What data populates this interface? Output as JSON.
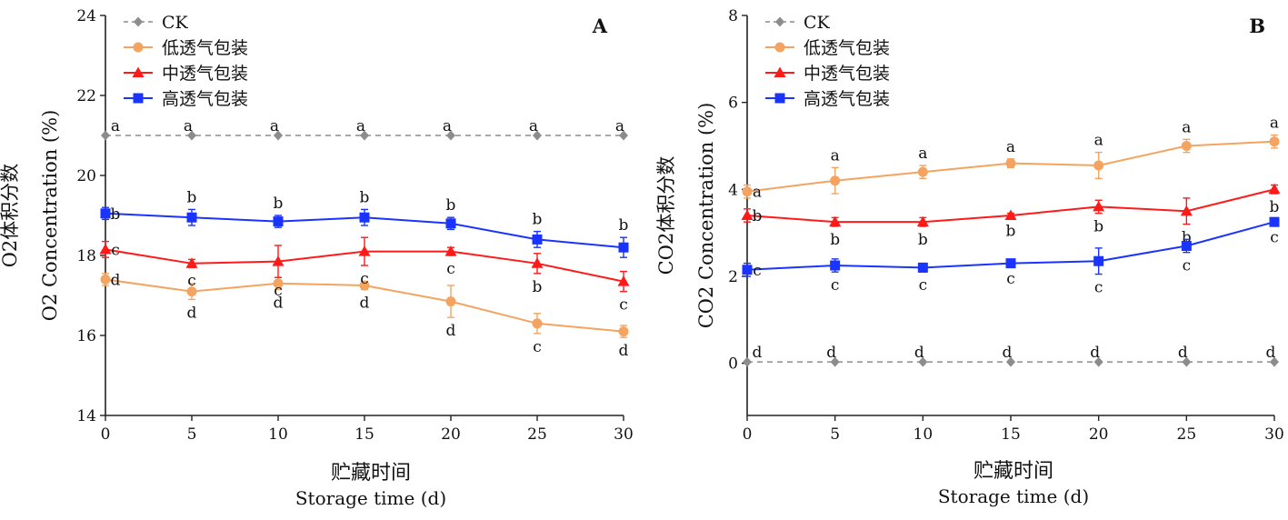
{
  "chart_data": [
    {
      "type": "line",
      "panel_label": "A",
      "ylabel_cn": "O2体积分数",
      "ylabel_en": "O2 Concentration (%)",
      "xlabel_cn": "贮藏时间",
      "xlabel_en": "Storage time (d)",
      "x": [
        0,
        5,
        10,
        15,
        20,
        25,
        30
      ],
      "xlim": [
        0,
        30
      ],
      "ylim": [
        14,
        24
      ],
      "yticks": [
        14,
        16,
        18,
        20,
        22,
        24
      ],
      "legend_position": "top-left",
      "grid": false,
      "series": [
        {
          "name": "CK",
          "color": "#8c8c8c",
          "marker": "diamond",
          "dashed": true,
          "values": [
            21,
            21,
            21,
            21,
            21,
            21,
            21
          ],
          "errors": [
            0,
            0,
            0,
            0,
            0,
            0,
            0
          ],
          "letters": [
            "a",
            "a",
            "a",
            "a",
            "a",
            "a",
            "a"
          ]
        },
        {
          "name": "低透气包装",
          "color": "#f4a460",
          "marker": "circle",
          "dashed": false,
          "values": [
            17.4,
            17.1,
            17.3,
            17.25,
            16.85,
            16.3,
            16.1
          ],
          "errors": [
            0.15,
            0.2,
            0.15,
            0.1,
            0.4,
            0.25,
            0.15
          ],
          "letters": [
            "d",
            "d",
            "d",
            "d",
            "d",
            "c",
            "d"
          ]
        },
        {
          "name": "中透气包装",
          "color": "#ff1a1a",
          "marker": "triangle",
          "dashed": false,
          "values": [
            18.15,
            17.8,
            17.85,
            18.1,
            18.1,
            17.8,
            17.35
          ],
          "errors": [
            0.2,
            0.1,
            0.4,
            0.35,
            0.1,
            0.25,
            0.25
          ],
          "letters": [
            "c",
            "c",
            "c",
            "c",
            "c",
            "b",
            "c"
          ]
        },
        {
          "name": "高透气包装",
          "color": "#1a33ff",
          "marker": "square",
          "dashed": false,
          "values": [
            19.05,
            18.95,
            18.85,
            18.95,
            18.8,
            18.4,
            18.2
          ],
          "errors": [
            0.15,
            0.2,
            0.15,
            0.2,
            0.15,
            0.2,
            0.25
          ],
          "letters": [
            "b",
            "b",
            "b",
            "b",
            "b",
            "b",
            "b"
          ]
        }
      ]
    },
    {
      "type": "line",
      "panel_label": "B",
      "ylabel_cn": "CO2体积分数",
      "ylabel_en": "CO2 Concentration (%)",
      "xlabel_cn": "贮藏时间",
      "xlabel_en": "Storage time (d)",
      "x": [
        0,
        5,
        10,
        15,
        20,
        25,
        30
      ],
      "xlim": [
        0,
        30
      ],
      "ylim": [
        -1.2,
        8
      ],
      "yticks": [
        0,
        2,
        4,
        6,
        8
      ],
      "legend_position": "top-left",
      "grid": false,
      "series": [
        {
          "name": "CK",
          "color": "#8c8c8c",
          "marker": "diamond",
          "dashed": true,
          "values": [
            0.03,
            0.03,
            0.03,
            0.03,
            0.03,
            0.03,
            0.03
          ],
          "errors": [
            0,
            0,
            0,
            0,
            0,
            0,
            0
          ],
          "letters": [
            "d",
            "d",
            "d",
            "d",
            "d",
            "d",
            "d"
          ]
        },
        {
          "name": "低透气包装",
          "color": "#f4a460",
          "marker": "circle",
          "dashed": false,
          "values": [
            3.95,
            4.2,
            4.4,
            4.6,
            4.55,
            5.0,
            5.1
          ],
          "errors": [
            0.15,
            0.3,
            0.15,
            0.1,
            0.3,
            0.15,
            0.15
          ],
          "letters": [
            "a",
            "a",
            "a",
            "a",
            "a",
            "a",
            "a"
          ]
        },
        {
          "name": "中透气包装",
          "color": "#ff1a1a",
          "marker": "triangle",
          "dashed": false,
          "values": [
            3.4,
            3.25,
            3.25,
            3.4,
            3.6,
            3.5,
            4.0
          ],
          "errors": [
            0.15,
            0.1,
            0.1,
            0.05,
            0.15,
            0.3,
            0.1
          ],
          "letters": [
            "b",
            "b",
            "b",
            "b",
            "b",
            "b",
            "b"
          ]
        },
        {
          "name": "高透气包装",
          "color": "#1a33ff",
          "marker": "square",
          "dashed": false,
          "values": [
            2.15,
            2.25,
            2.2,
            2.3,
            2.35,
            2.7,
            3.25
          ],
          "errors": [
            0.15,
            0.15,
            0.1,
            0.05,
            0.3,
            0.15,
            0.05
          ],
          "letters": [
            "c",
            "c",
            "c",
            "c",
            "c",
            "c",
            "c"
          ]
        }
      ]
    }
  ]
}
